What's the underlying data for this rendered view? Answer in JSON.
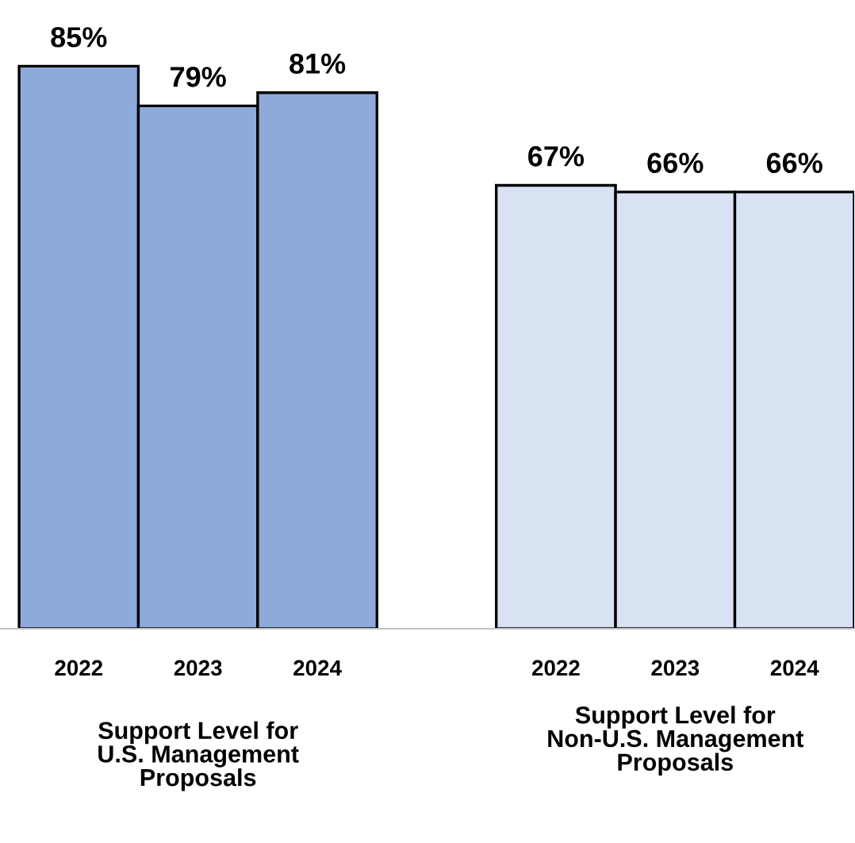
{
  "chart_data": {
    "type": "bar",
    "categories": [
      "2022",
      "2023",
      "2024",
      null,
      "2022",
      "2023",
      "2024"
    ],
    "values": [
      85,
      79,
      81,
      null,
      67,
      66,
      66
    ],
    "value_labels": [
      "85%",
      "79%",
      "81%",
      null,
      "67%",
      "66%",
      "66%"
    ],
    "colors": [
      "#8eaadb",
      "#8eaadb",
      "#8eaadb",
      null,
      "#d9e2f3",
      "#d9e2f3",
      "#d9e2f3"
    ],
    "tick_labels": "x",
    "grid": false,
    "legend": false,
    "annotations": [
      "Support Level for\nU.S. Management\nProposals",
      "Support Level for\nNon-U.S. Management\nProposals"
    ]
  }
}
